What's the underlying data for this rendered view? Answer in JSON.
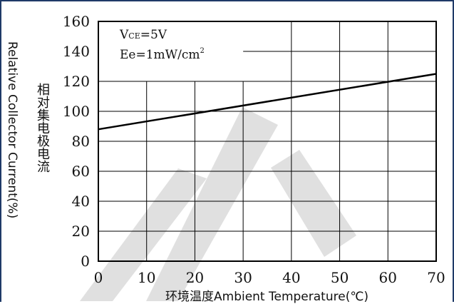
{
  "chart_data": {
    "type": "line",
    "title": "",
    "xlabel": "环境温度Ambient Temperature(℃)",
    "ylabel_en": "Relative Collector Current(%)",
    "ylabel_cn": "相对集电极电流",
    "xlim": [
      0,
      70
    ],
    "ylim": [
      0,
      160
    ],
    "x_ticks": [
      "0",
      "10",
      "20",
      "30",
      "40",
      "50",
      "60",
      "70"
    ],
    "y_ticks": [
      "0",
      "20",
      "40",
      "60",
      "80",
      "100",
      "120",
      "140",
      "160"
    ],
    "grid": true,
    "annotations": {
      "vce_main": "V",
      "vce_sub": "CE",
      "vce_value": "=5V",
      "ee_text": "Ee=1mW/cm",
      "ee_sup": "2"
    },
    "series": [
      {
        "x": [
          0,
          70
        ],
        "y": [
          88,
          125
        ]
      }
    ]
  },
  "colors": {
    "line": "#000000",
    "grid": "#000000",
    "frame": "#1f3a68",
    "watermark": "#c9c9c9"
  }
}
